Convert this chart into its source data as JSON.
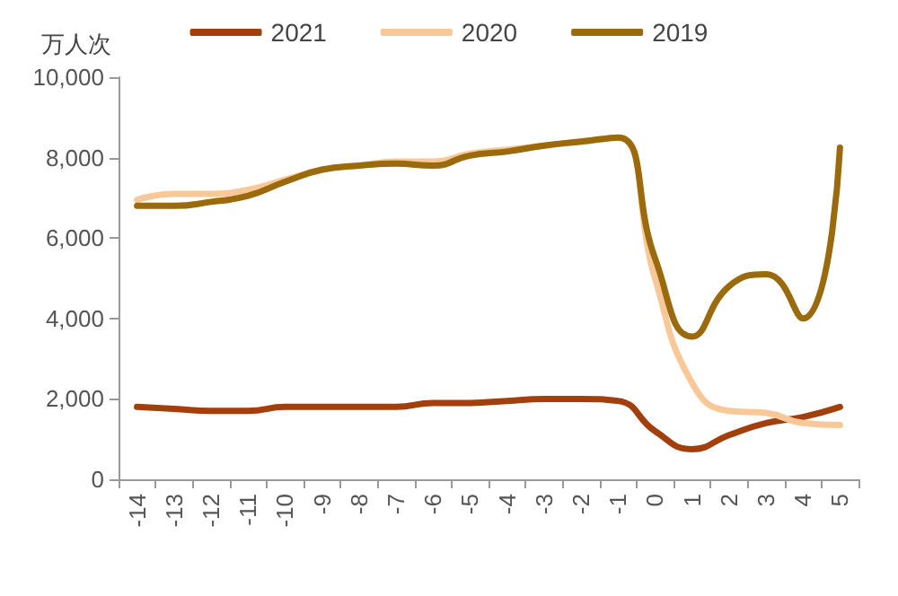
{
  "chart_data": {
    "type": "line",
    "ylabel": "万人次",
    "categories": [
      "-14",
      "-13",
      "-12",
      "-11",
      "-10",
      "-9",
      "-8",
      "-7",
      "-6",
      "-5",
      "-4",
      "-3",
      "-2",
      "-1",
      "0",
      "1",
      "2",
      "3",
      "4",
      "5"
    ],
    "series": [
      {
        "name": "2021",
        "color": "#a23f0c",
        "values": [
          1800,
          1750,
          1700,
          1700,
          1800,
          1800,
          1800,
          1800,
          1900,
          1900,
          1950,
          2000,
          2000,
          1950,
          1200,
          750,
          1100,
          1400,
          1550,
          1800
        ]
      },
      {
        "name": "2020",
        "color": "#f9c898",
        "values": [
          6950,
          7100,
          7100,
          7200,
          7450,
          7700,
          7800,
          7900,
          7900,
          8100,
          8200,
          8300,
          8400,
          8500,
          5000,
          2400,
          1700,
          1650,
          1400,
          1350
        ]
      },
      {
        "name": "2019",
        "color": "#9a6a0c",
        "values": [
          6800,
          6800,
          6900,
          7050,
          7400,
          7700,
          7800,
          7850,
          7800,
          8050,
          8150,
          8300,
          8400,
          8500,
          5500,
          3550,
          4800,
          5100,
          4000,
          8250
        ]
      }
    ],
    "ylim": [
      0,
      10000
    ],
    "yticks": [
      0,
      {
        "value": 2000,
        "label": "2,000"
      },
      {
        "value": 4000,
        "label": "4,000"
      },
      {
        "value": 6000,
        "label": "6,000"
      },
      {
        "value": 8000,
        "label": "8,000"
      },
      {
        "value": 10000,
        "label": "10,000"
      }
    ],
    "grid": false,
    "legend": "top",
    "marker": "none",
    "line_style": "solid"
  }
}
